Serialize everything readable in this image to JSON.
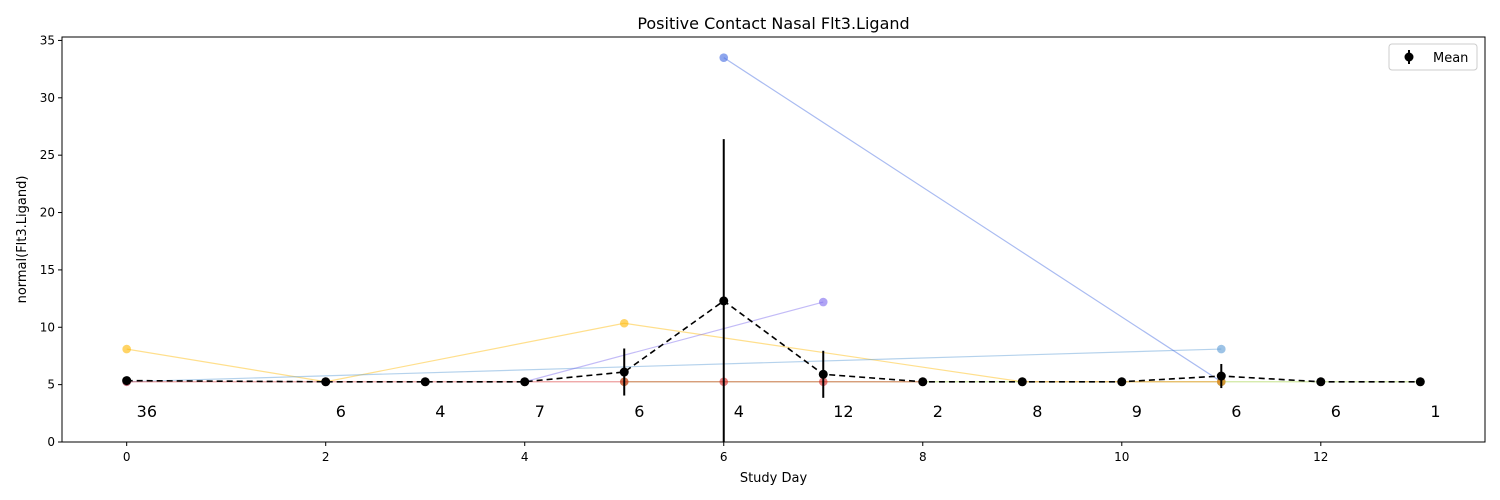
{
  "chart_data": {
    "type": "line",
    "title": "Positive Contact Nasal Flt3.Ligand",
    "xlabel": "Study Day",
    "ylabel": "normal(Flt3.Ligand)",
    "xlim": [
      -0.65,
      13.65
    ],
    "ylim": [
      0,
      35.3
    ],
    "x_ticks": [
      0,
      2,
      4,
      6,
      8,
      10,
      12
    ],
    "y_ticks": [
      0,
      5,
      10,
      15,
      20,
      25,
      30,
      35
    ],
    "grid": false,
    "legend": {
      "position": "top-right",
      "entries": [
        "Mean"
      ]
    },
    "series": [
      {
        "color": "#ffb700",
        "x": [
          0,
          2,
          5,
          9
        ],
        "y": [
          8.1,
          5.25,
          10.35,
          5.25
        ]
      },
      {
        "color": "#5b9bd5",
        "x": [
          0,
          11
        ],
        "y": [
          5.25,
          8.1
        ]
      },
      {
        "color": "#7b68ee",
        "x": [
          4,
          7
        ],
        "y": [
          5.25,
          12.2
        ]
      },
      {
        "color": "#4169e1",
        "x": [
          6,
          11
        ],
        "y": [
          33.5,
          5.25
        ]
      },
      {
        "color": "#9acd32",
        "x": [
          5,
          11,
          12,
          13
        ],
        "y": [
          5.25,
          5.25,
          5.25,
          5.25
        ]
      },
      {
        "color": "#ff7f0e",
        "x": [
          9,
          11
        ],
        "y": [
          5.25,
          5.25
        ]
      },
      {
        "color": "#d62728",
        "x": [
          0,
          2,
          3,
          4,
          5,
          6,
          7,
          8
        ],
        "y": [
          5.25,
          5.25,
          5.25,
          5.25,
          5.25,
          5.25,
          5.25,
          5.25
        ]
      }
    ],
    "mean": {
      "name": "Mean",
      "color": "#000000",
      "x": [
        0,
        2,
        3,
        4,
        5,
        6,
        7,
        8,
        9,
        10,
        11,
        12,
        13
      ],
      "y": [
        5.35,
        5.25,
        5.25,
        5.25,
        6.1,
        12.3,
        5.9,
        5.25,
        5.25,
        5.25,
        5.75,
        5.25,
        5.25
      ],
      "err": [
        0.35,
        0,
        0,
        0,
        2.05,
        14.1,
        2.05,
        0,
        0,
        0,
        1.05,
        0,
        0
      ]
    },
    "counts": {
      "x": [
        0,
        2,
        3,
        4,
        5,
        6,
        7,
        8,
        9,
        10,
        11,
        12,
        13
      ],
      "labels": [
        "36",
        "6",
        "4",
        "7",
        "6",
        "4",
        "12",
        "2",
        "8",
        "9",
        "6",
        "6",
        "1"
      ],
      "y": 3.4
    }
  }
}
